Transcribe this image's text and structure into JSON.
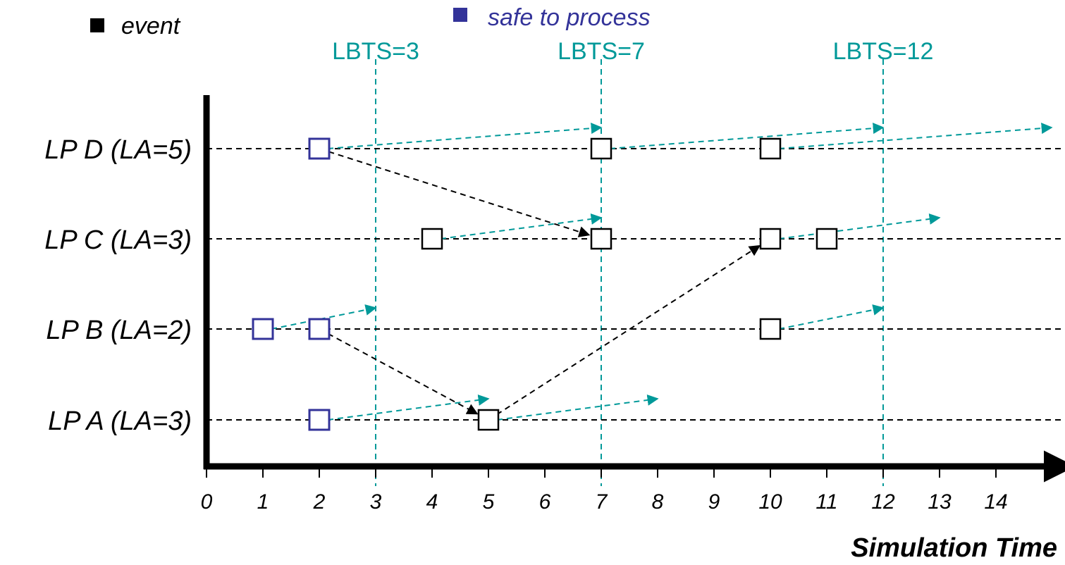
{
  "legend": {
    "event": {
      "label": "event",
      "color": "#000000"
    },
    "safe": {
      "label": "safe to process",
      "color": "#333399"
    }
  },
  "axis": {
    "title": "Simulation Time",
    "ticks": [
      "0",
      "1",
      "2",
      "3",
      "4",
      "5",
      "6",
      "7",
      "8",
      "9",
      "10",
      "11",
      "12",
      "13",
      "14"
    ]
  },
  "processes": [
    {
      "id": "D",
      "label": "LP D (LA=5)",
      "lookahead": 5
    },
    {
      "id": "C",
      "label": "LP C (LA=3)",
      "lookahead": 3
    },
    {
      "id": "B",
      "label": "LP B (LA=2)",
      "lookahead": 2
    },
    {
      "id": "A",
      "label": "LP A (LA=3)",
      "lookahead": 3
    }
  ],
  "lbts": [
    {
      "t": 3,
      "label": "LBTS=3"
    },
    {
      "t": 7,
      "label": "LBTS=7"
    },
    {
      "t": 12,
      "label": "LBTS=12"
    }
  ],
  "events": [
    {
      "lp": "D",
      "t": 2,
      "safe": true
    },
    {
      "lp": "D",
      "t": 7,
      "safe": false
    },
    {
      "lp": "D",
      "t": 10,
      "safe": false
    },
    {
      "lp": "C",
      "t": 4,
      "safe": false
    },
    {
      "lp": "C",
      "t": 7,
      "safe": false
    },
    {
      "lp": "C",
      "t": 10,
      "safe": false
    },
    {
      "lp": "C",
      "t": 11,
      "safe": false
    },
    {
      "lp": "B",
      "t": 1,
      "safe": true
    },
    {
      "lp": "B",
      "t": 2,
      "safe": true
    },
    {
      "lp": "B",
      "t": 10,
      "safe": false
    },
    {
      "lp": "A",
      "t": 2,
      "safe": true
    },
    {
      "lp": "A",
      "t": 5,
      "safe": false
    }
  ],
  "messages": [
    {
      "fromLp": "D",
      "fromT": 2,
      "toLp": "C",
      "toT": 7
    },
    {
      "fromLp": "B",
      "fromT": 2,
      "toLp": "A",
      "toT": 5
    },
    {
      "fromLp": "A",
      "fromT": 5,
      "toLp": "C",
      "toT": 10
    }
  ],
  "lookahead_arrows": [
    {
      "lp": "D",
      "fromT": 2,
      "toT": 7
    },
    {
      "lp": "D",
      "fromT": 7,
      "toT": 12
    },
    {
      "lp": "D",
      "fromT": 10,
      "toT": 15
    },
    {
      "lp": "C",
      "fromT": 4,
      "toT": 7
    },
    {
      "lp": "C",
      "fromT": 10,
      "toT": 13
    },
    {
      "lp": "B",
      "fromT": 1,
      "toT": 3
    },
    {
      "lp": "B",
      "fromT": 10,
      "toT": 12
    },
    {
      "lp": "A",
      "fromT": 2,
      "toT": 5
    },
    {
      "lp": "A",
      "fromT": 5,
      "toT": 8
    }
  ],
  "colors": {
    "axis": "#000000",
    "lbts": "#009999",
    "lookahead": "#009999",
    "message": "#000000",
    "eventFill": "#ffffff",
    "eventBorder": "#000000",
    "safeBorder": "#333399"
  }
}
